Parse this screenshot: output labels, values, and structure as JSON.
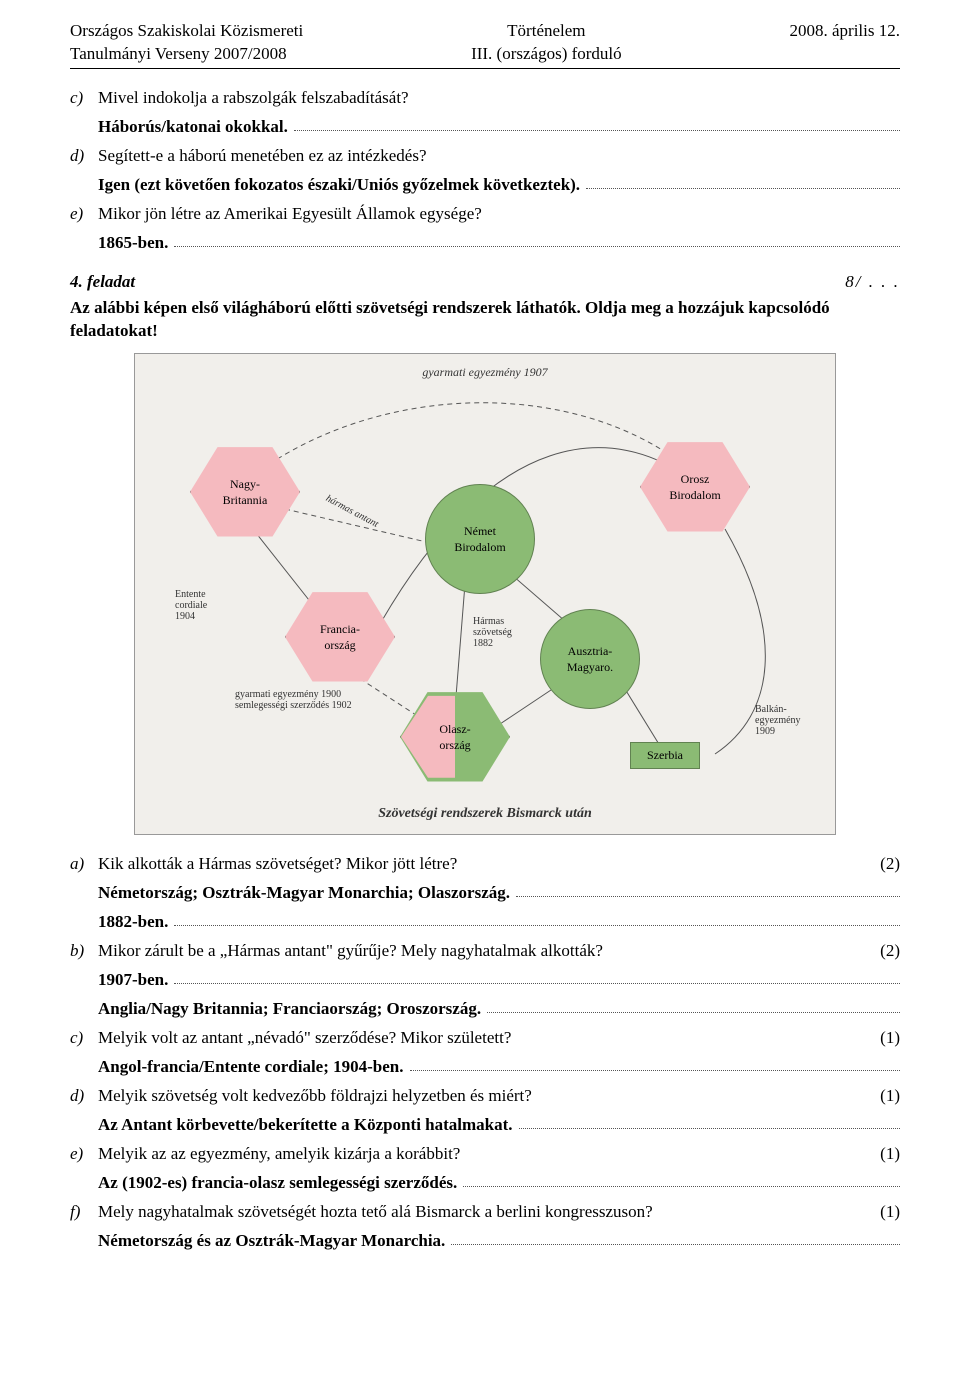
{
  "header": {
    "left1": "Országos Szakiskolai Közismereti",
    "left2": "Tanulmányi Verseny 2007/2008",
    "center1": "Történelem",
    "center2": "III. (országos) forduló",
    "right1": "",
    "right2": "2008. április 12."
  },
  "q_c": {
    "letter": "c)",
    "text": "Mivel indokolja a rabszolgák felszabadítását?",
    "answer": "Háborús/katonai okokkal."
  },
  "q_d": {
    "letter": "d)",
    "text": "Segített-e a háború menetében ez az intézkedés?",
    "answer": "Igen (ezt követően fokozatos északi/Uniós győzelmek következtek)."
  },
  "q_e": {
    "letter": "e)",
    "text": "Mikor jön létre az Amerikai Egyesült Államok egysége?",
    "answer": "1865-ben."
  },
  "task4": {
    "label": "4. feladat",
    "points": "8/ . . .",
    "desc": "Az alábbi képen első világháború előtti szövetségi rendszerek láthatók. Oldja meg a hozzájuk kapcsolódó feladatokat!"
  },
  "diagram": {
    "top": "gyarmati egyezmény 1907",
    "bottom": "Szövetségi rendszerek Bismarck után",
    "nodes": {
      "gb": {
        "label": "Nagy-\nBritannia"
      },
      "fr": {
        "label": "Francia-\nország"
      },
      "it": {
        "label": "Olasz-\nország"
      },
      "ru": {
        "label": "Orosz\nBirodalom"
      },
      "de": {
        "label": "Német\nBirodalom"
      },
      "ah": {
        "label": "Ausztria-\nMagyaro."
      },
      "srb": {
        "label": "Szerbia"
      }
    },
    "labels": {
      "entente": "Entente\ncordiale\n1904",
      "gyarmat": "gyarmati egyezmény 1900\nsemlegességi szerződés 1902",
      "harmasS": "Hármas\nszövetség\n1882",
      "harmasA": "hármas antant",
      "balkan": "Balkán-\negyezmény\n1909"
    }
  },
  "qa": {
    "a": {
      "letter": "a)",
      "text": "Kik alkották a Hármas szövetséget? Mikor jött létre?",
      "pts": "(2)",
      "ans1": "Németország; Osztrák-Magyar Monarchia; Olaszország.",
      "ans2": "1882-ben."
    },
    "b": {
      "letter": "b)",
      "text": "Mikor zárult be a „Hármas antant\" gyűrűje? Mely nagyhatalmak alkották?",
      "pts": "(2)",
      "ans1": "1907-ben.",
      "ans2": "Anglia/Nagy Britannia; Franciaország; Oroszország."
    },
    "c": {
      "letter": "c)",
      "text": "Melyik volt az antant „névadó\" szerződése? Mikor született?",
      "pts": "(1)",
      "ans1": "Angol-francia/Entente cordiale; 1904-ben."
    },
    "d": {
      "letter": "d)",
      "text": "Melyik szövetség volt kedvezőbb földrajzi helyzetben és miért?",
      "pts": "(1)",
      "ans1": "Az Antant körbevette/bekerítette a Központi hatalmakat."
    },
    "e": {
      "letter": "e)",
      "text": "Melyik az az egyezmény, amelyik kizárja a korábbit?",
      "pts": "(1)",
      "ans1": "Az (1902-es) francia-olasz semlegességi szerződés."
    },
    "f": {
      "letter": "f)",
      "text": "Mely nagyhatalmak szövetségét hozta tető alá Bismarck a berlini kongresszuson?",
      "pts": "(1)",
      "ans1": "Németország és az Osztrák-Magyar Monarchia."
    }
  }
}
